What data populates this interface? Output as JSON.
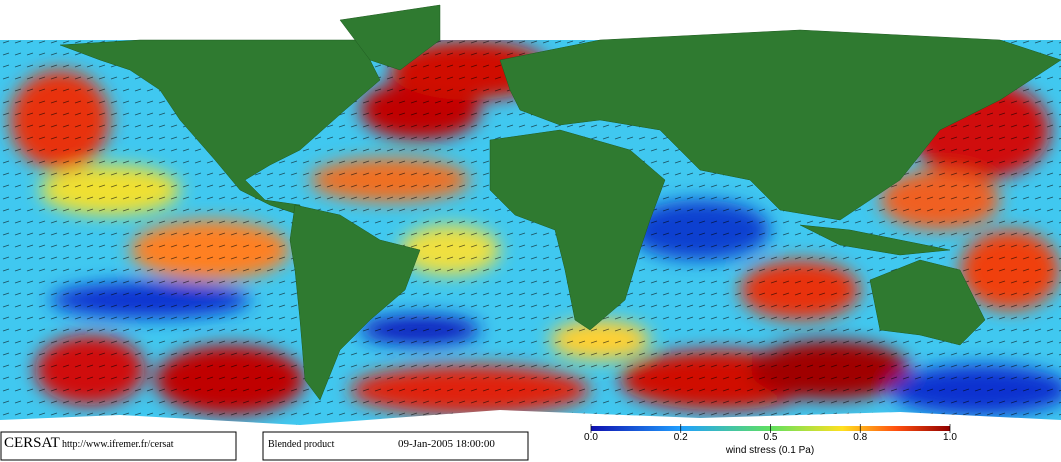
{
  "logo": "CERSAT",
  "url": "http://www.ifremer.fr/cersat",
  "product": "Blended product",
  "datetime": "09-Jan-2005 18:00:00",
  "colorbar": {
    "title": "wind stress (0.1 Pa)",
    "lim": [
      0,
      1
    ],
    "ticks": [
      {
        "value": 0,
        "label": "0.0"
      },
      0.2,
      0.5,
      0.8,
      {
        "value": 1,
        "label": "1.0"
      }
    ]
  }
}
